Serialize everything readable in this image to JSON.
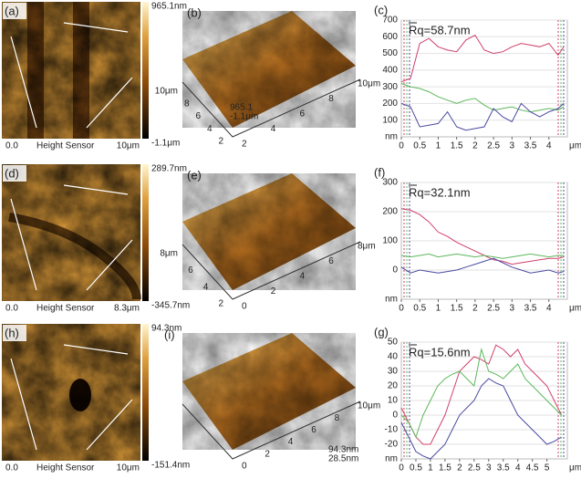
{
  "panels": [
    {
      "label": "(a)",
      "top": "965.1nm",
      "bottom": "-1.1μm",
      "origin": "0.0",
      "caption": "Height Sensor",
      "scale": "10μm"
    },
    {
      "label": "(d)",
      "top": "289.7nm",
      "bottom": "-345.7nm",
      "origin": "0.0",
      "caption": "Height Sensor",
      "scale": "8.3μm"
    },
    {
      "label": "(h)",
      "top": "94.3nm",
      "bottom": "-151.4nm",
      "origin": "0.0",
      "caption": "Height Sensor",
      "scale": "10μm"
    }
  ],
  "views3d": [
    {
      "label": "(b)",
      "left_axis": [
        "10μm",
        "8",
        "6",
        "4",
        "2"
      ],
      "right_axis": [
        "2",
        "4",
        "6",
        "8",
        "10μm"
      ],
      "z_labels": [
        "965.1",
        "-1.1μm"
      ]
    },
    {
      "label": "(e)",
      "left_axis": [
        "8μm",
        "6",
        "4",
        "2"
      ],
      "right_axis": [
        "0",
        "2",
        "4",
        "6",
        "8μm"
      ],
      "z_labels": []
    },
    {
      "label": "(i)",
      "left_axis": [],
      "right_axis": [
        "0",
        "2",
        "4",
        "6",
        "8",
        "10μm"
      ],
      "z_labels": [
        "94.3nm",
        "28.5nm"
      ]
    }
  ],
  "chart_data": [
    {
      "type": "line",
      "label": "(c)",
      "annotation": "Rq=58.7nm",
      "x_unit": "μm",
      "y_unit": "nm",
      "x": [
        0,
        0.25,
        0.5,
        0.75,
        1,
        1.25,
        1.5,
        1.75,
        2,
        2.25,
        2.5,
        2.75,
        3,
        3.25,
        3.5,
        3.75,
        4,
        4.25,
        4.4
      ],
      "series": [
        {
          "color": "#d0406a",
          "values": [
            330,
            350,
            560,
            590,
            540,
            520,
            510,
            580,
            610,
            520,
            500,
            510,
            540,
            560,
            550,
            540,
            560,
            490,
            540
          ]
        },
        {
          "color": "#5cb85c",
          "values": [
            320,
            300,
            290,
            270,
            240,
            220,
            200,
            220,
            230,
            190,
            160,
            170,
            180,
            160,
            150,
            160,
            170,
            160,
            180
          ]
        },
        {
          "color": "#4a4aa0",
          "values": [
            200,
            180,
            60,
            70,
            80,
            150,
            60,
            40,
            50,
            60,
            170,
            120,
            90,
            200,
            150,
            120,
            150,
            170,
            200
          ]
        }
      ],
      "xlim": [
        0,
        4.5
      ],
      "ylim": [
        0,
        700
      ],
      "xticks": [
        0,
        0.5,
        1,
        1.5,
        2,
        2.5,
        3,
        3.5,
        4
      ],
      "yticks": [
        100,
        200,
        300,
        400,
        500,
        600,
        700
      ]
    },
    {
      "type": "line",
      "label": "(f)",
      "annotation": "Rq=32.1nm",
      "x_unit": "μm",
      "y_unit": "nm",
      "x": [
        0,
        0.25,
        0.5,
        0.75,
        1,
        1.25,
        1.5,
        1.75,
        2,
        2.25,
        2.5,
        2.75,
        3,
        3.25,
        3.5,
        3.75,
        4,
        4.25,
        4.4
      ],
      "series": [
        {
          "color": "#d0406a",
          "values": [
            210,
            205,
            190,
            165,
            130,
            115,
            95,
            80,
            65,
            50,
            35,
            30,
            20,
            25,
            30,
            35,
            40,
            40,
            45
          ]
        },
        {
          "color": "#5cb85c",
          "values": [
            50,
            45,
            50,
            55,
            45,
            50,
            55,
            50,
            45,
            50,
            45,
            40,
            45,
            50,
            55,
            50,
            45,
            50,
            50
          ]
        },
        {
          "color": "#4a4aa0",
          "values": [
            10,
            -10,
            0,
            -5,
            -10,
            -5,
            0,
            10,
            20,
            30,
            40,
            25,
            10,
            0,
            -10,
            -5,
            0,
            -10,
            -5
          ]
        }
      ],
      "xlim": [
        0,
        4.5
      ],
      "ylim": [
        -100,
        300
      ],
      "xticks": [
        0,
        0.5,
        1,
        1.5,
        2,
        2.5,
        3,
        3.5,
        4
      ],
      "yticks": [
        0,
        100,
        200,
        300
      ]
    },
    {
      "type": "line",
      "label": "(g)",
      "annotation": "Rq=15.6nm",
      "x_unit": "μm",
      "y_unit": "nm",
      "x": [
        0,
        0.25,
        0.5,
        0.75,
        1,
        1.25,
        1.5,
        1.75,
        2,
        2.25,
        2.5,
        2.75,
        3,
        3.25,
        3.5,
        3.75,
        4,
        4.25,
        4.5,
        4.75,
        5,
        5.25,
        5.5
      ],
      "series": [
        {
          "color": "#d0406a",
          "values": [
            5,
            -5,
            -15,
            -20,
            -20,
            -10,
            0,
            15,
            30,
            35,
            40,
            38,
            35,
            48,
            45,
            40,
            45,
            35,
            30,
            25,
            20,
            10,
            0
          ]
        },
        {
          "color": "#5cb85c",
          "values": [
            0,
            -5,
            -15,
            0,
            10,
            20,
            25,
            28,
            30,
            25,
            20,
            45,
            30,
            28,
            25,
            30,
            35,
            25,
            20,
            15,
            10,
            5,
            0
          ]
        },
        {
          "color": "#4a4aa0",
          "values": [
            -5,
            -15,
            -25,
            -28,
            -30,
            -25,
            -20,
            -10,
            0,
            5,
            10,
            20,
            25,
            22,
            20,
            10,
            0,
            -5,
            -10,
            -15,
            -20,
            -18,
            -15
          ]
        }
      ],
      "xlim": [
        0,
        5.7
      ],
      "ylim": [
        -30,
        50
      ],
      "xticks": [
        0,
        0.5,
        1,
        1.5,
        2,
        2.5,
        3,
        3.5,
        4,
        4.5,
        5
      ],
      "yticks": [
        -20,
        -10,
        0,
        10,
        20,
        30,
        40,
        50
      ]
    }
  ]
}
